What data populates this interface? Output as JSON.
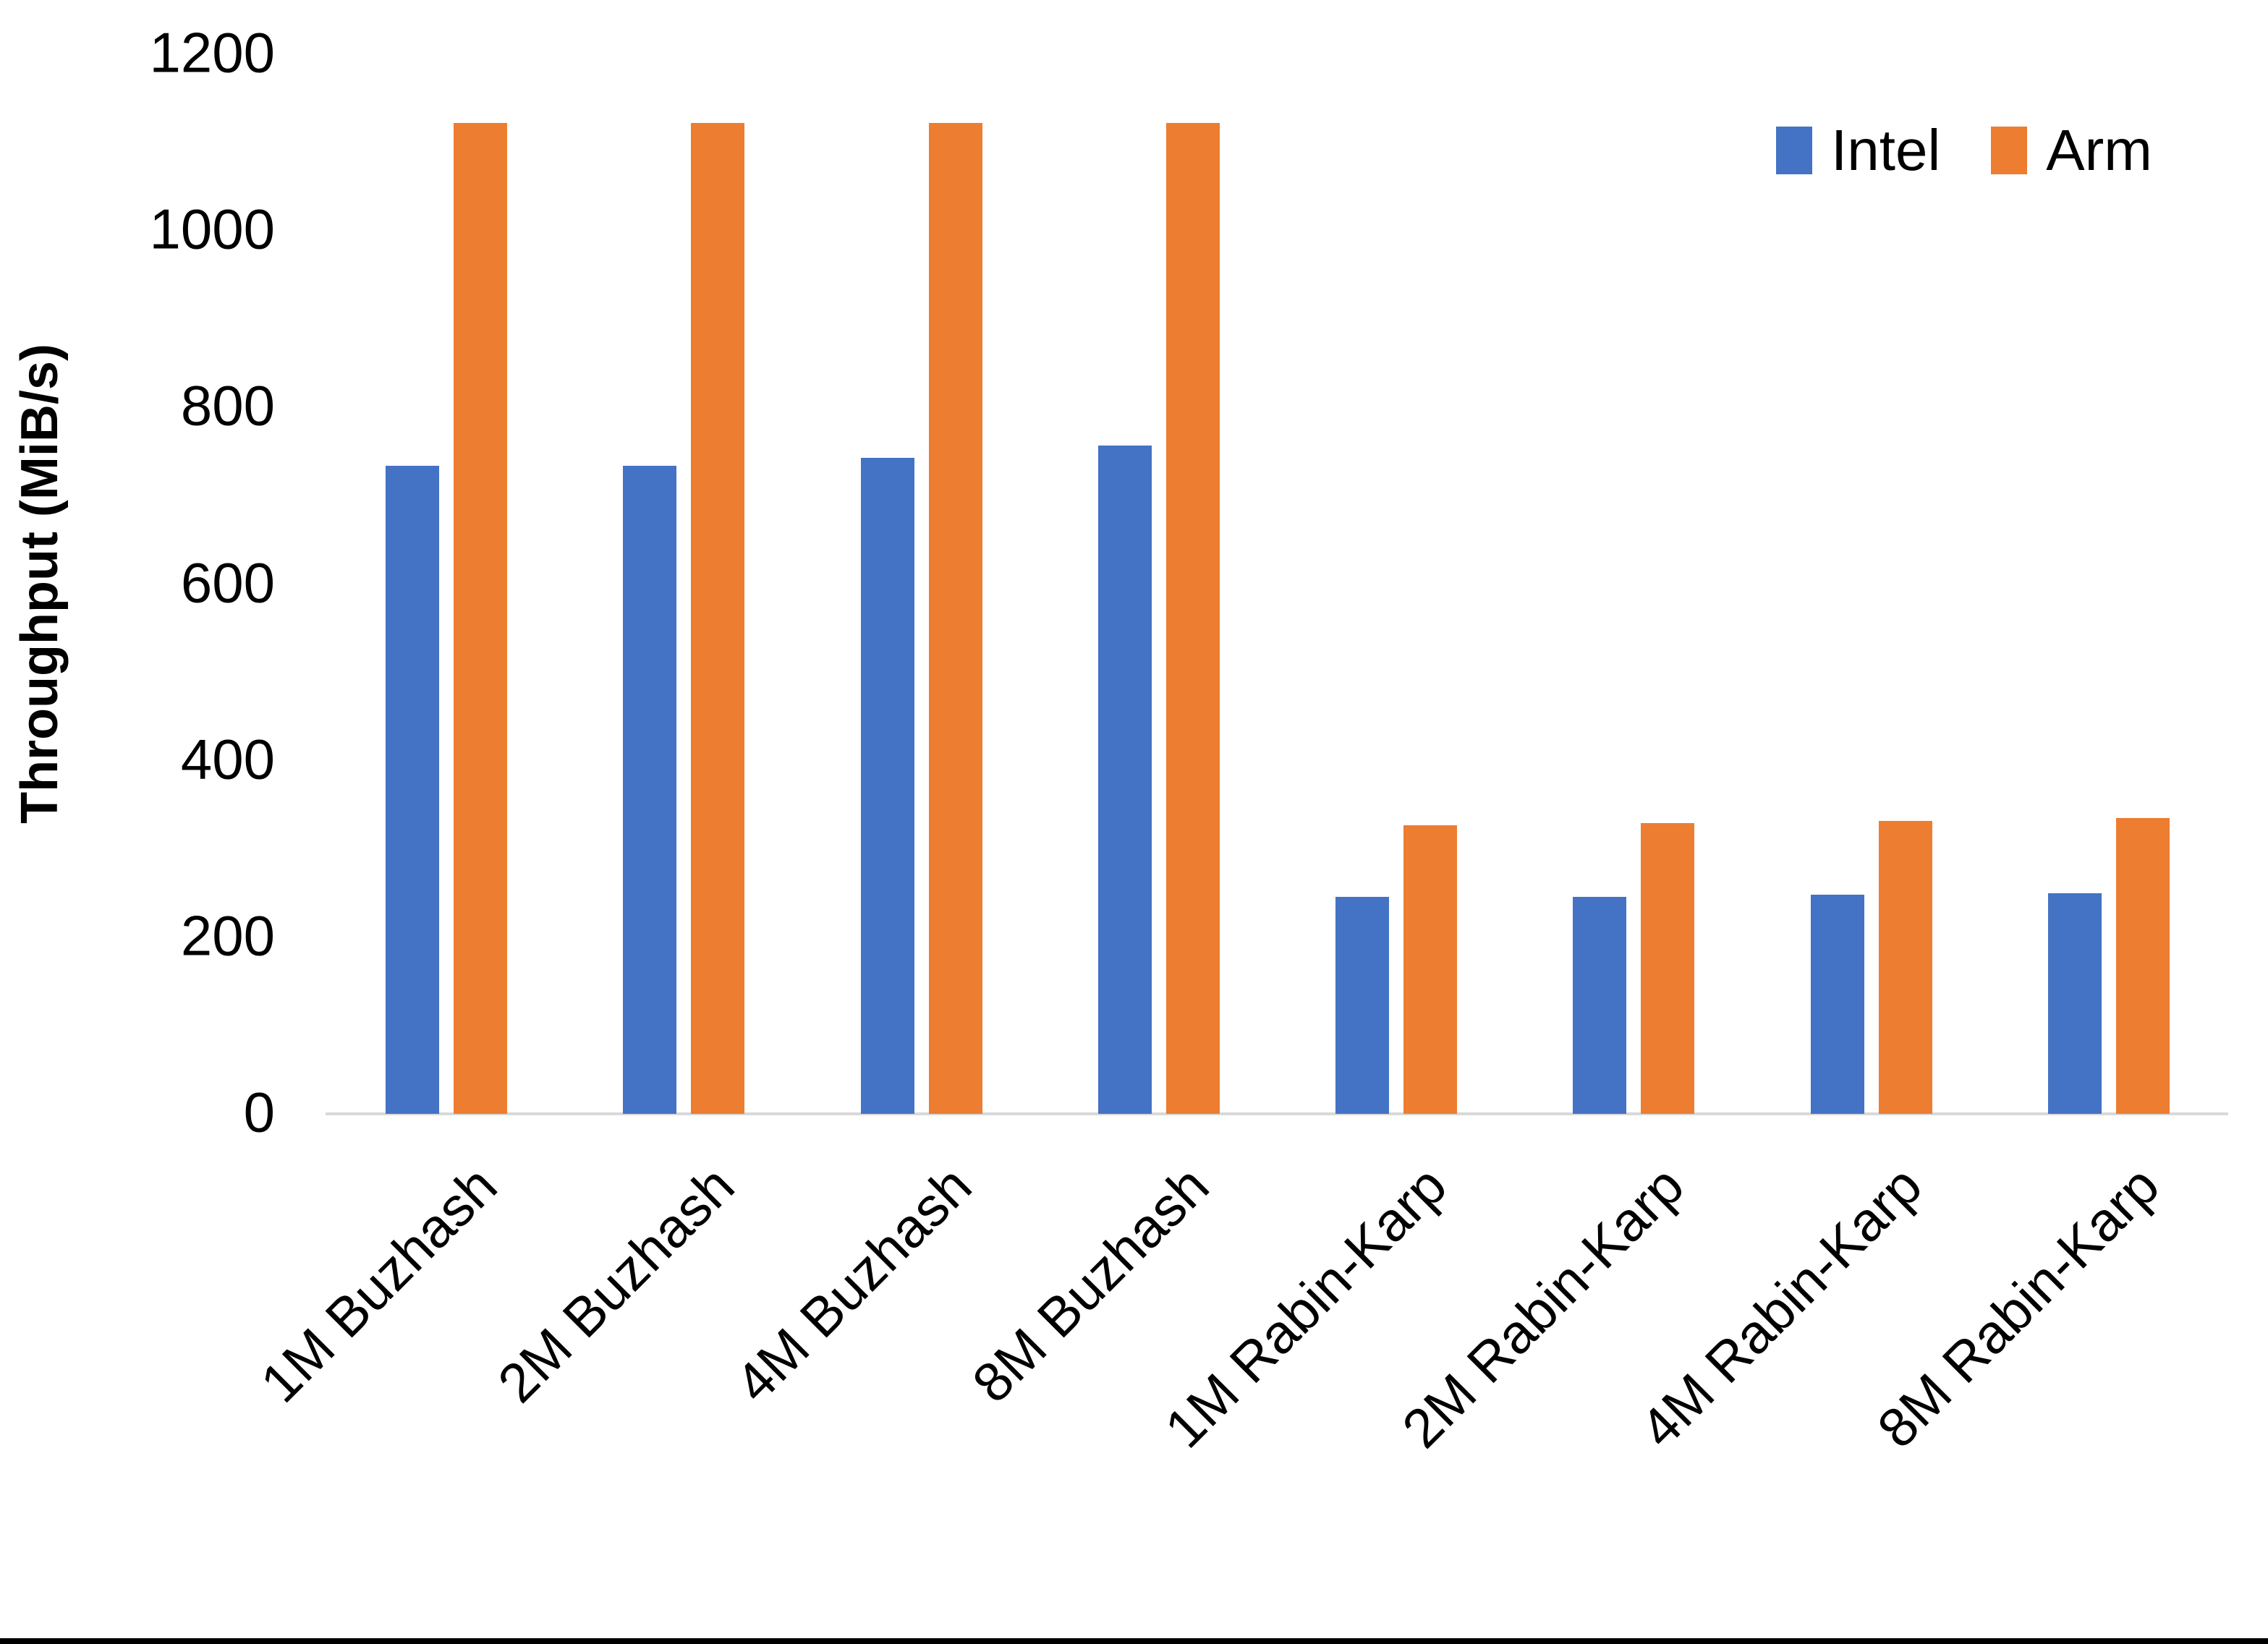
{
  "chart_data": {
    "type": "bar",
    "title": "",
    "xlabel": "",
    "ylabel": "Throughput (MiB/s)",
    "ylim": [
      0,
      1200
    ],
    "yticks": [
      0,
      200,
      400,
      600,
      800,
      1000,
      1200
    ],
    "grid": false,
    "legend_position": "top-right",
    "categories": [
      "1M Buzhash",
      "2M Buzhash",
      "4M Buzhash",
      "8M Buzhash",
      "1M Rabin-Karp",
      "2M Rabin-Karp",
      "4M Rabin-Karp",
      "8M Rabin-Karp"
    ],
    "series": [
      {
        "name": "Intel",
        "color": "#4472C4",
        "values": [
          734,
          734,
          743,
          757,
          246,
          246,
          248,
          250
        ]
      },
      {
        "name": "Arm",
        "color": "#ED7D31",
        "values": [
          1122,
          1122,
          1122,
          1122,
          327,
          329,
          332,
          335
        ]
      }
    ]
  },
  "colors": {
    "axis_line": "#D9D9D9",
    "text": "#000000",
    "background": "#FFFFFF",
    "bottom_border": "#000000"
  }
}
